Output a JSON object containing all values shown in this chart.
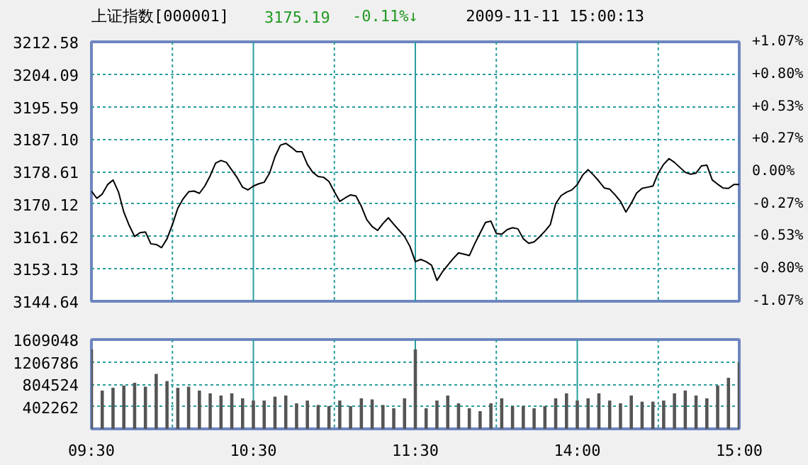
{
  "chart_data": [
    {
      "type": "line",
      "title": "上证指数[000001]",
      "annotations": [
        "3175.19",
        "-0.11%↓",
        "2009-11-11 15:00:13"
      ],
      "categories": [
        null,
        null,
        null,
        null,
        null,
        null,
        null,
        null,
        null,
        null,
        null,
        null,
        null,
        null,
        null,
        null,
        null,
        null,
        null,
        null,
        null,
        null,
        null,
        null,
        null,
        null,
        null,
        null,
        null,
        null,
        null,
        null,
        null,
        null,
        null,
        null,
        null,
        null,
        null,
        null,
        null,
        null,
        null,
        null,
        null,
        null,
        null,
        null,
        null,
        null,
        null,
        null,
        null,
        null,
        null,
        null,
        null,
        null,
        null,
        null,
        null,
        null,
        null,
        null,
        null,
        null,
        null,
        null,
        null,
        null,
        null,
        null,
        null,
        null,
        null,
        null,
        null,
        null,
        null,
        null,
        null,
        null,
        null,
        null,
        null,
        null,
        null,
        null,
        null,
        null,
        null,
        null,
        null,
        null,
        null,
        null,
        null,
        null,
        null,
        null,
        null,
        null,
        null,
        null,
        null,
        null,
        null,
        null,
        null,
        null,
        null,
        null,
        null,
        null,
        null,
        null,
        null,
        null,
        null,
        null,
        null
      ],
      "series": [
        {
          "color": "#000000",
          "values": [
            3173.5,
            3171.6,
            3172.7,
            3175.2,
            3176.4,
            3173.3,
            3168.0,
            3164.5,
            3161.6,
            3162.6,
            3162.8,
            3159.7,
            3159.5,
            3158.7,
            3161.0,
            3164.7,
            3169.0,
            3171.5,
            3173.3,
            3173.5,
            3172.9,
            3174.8,
            3177.5,
            3180.8,
            3181.5,
            3181.0,
            3179.0,
            3177.0,
            3174.5,
            3173.8,
            3174.8,
            3175.4,
            3175.8,
            3178.2,
            3182.5,
            3185.5,
            3186.0,
            3185.0,
            3183.8,
            3183.8,
            3180.5,
            3178.4,
            3177.3,
            3177.1,
            3176.0,
            3173.3,
            3170.8,
            3171.7,
            3172.5,
            3172.2,
            3169.5,
            3166.0,
            3164.2,
            3163.2,
            3165.0,
            3166.5,
            3164.8,
            3163.2,
            3161.6,
            3159.0,
            3155.0,
            3155.6,
            3155.0,
            3154.1,
            3150.1,
            3152.3,
            3154.1,
            3155.8,
            3157.3,
            3157.0,
            3156.6,
            3159.7,
            3162.5,
            3165.3,
            3165.6,
            3162.4,
            3162.2,
            3163.4,
            3163.9,
            3163.6,
            3161.0,
            3159.8,
            3160.2,
            3161.5,
            3163.0,
            3164.7,
            3170.2,
            3172.3,
            3173.2,
            3173.8,
            3175.2,
            3177.7,
            3179.1,
            3177.7,
            3176.1,
            3174.3,
            3174.0,
            3172.5,
            3170.8,
            3168.0,
            3170.3,
            3173.0,
            3174.2,
            3174.5,
            3174.8,
            3178.2,
            3180.5,
            3182.0,
            3181.0,
            3179.7,
            3178.4,
            3177.9,
            3178.2,
            3180.1,
            3180.3,
            3176.4,
            3175.3,
            3174.3,
            3174.2,
            3175.2,
            3175.2
          ]
        }
      ],
      "ylim": [
        3144.64,
        3212.58
      ],
      "yticks": [
        3144.64,
        3153.13,
        3161.62,
        3170.12,
        3178.61,
        {
          "value": 3187.1,
          "label": "3187.10"
        },
        3195.59,
        3204.09,
        3212.58
      ],
      "y2lim": [
        -1.07,
        1.07
      ],
      "y2ticks": [
        {
          "value": -1.07,
          "label": "-1.07%"
        },
        {
          "value": -0.8,
          "label": "-0.80%"
        },
        {
          "value": -0.53,
          "label": "-0.53%"
        },
        {
          "value": -0.27,
          "label": "-0.27%"
        },
        {
          "value": 0,
          "label": "0.00%"
        },
        {
          "value": 0.27,
          "label": "+0.27%"
        },
        {
          "value": 0.53,
          "label": "+0.53%"
        },
        {
          "value": 0.8,
          "label": "+0.80%"
        },
        {
          "value": 1.07,
          "label": "+1.07%"
        }
      ],
      "grid": true
    },
    {
      "type": "bar",
      "color": "#555555",
      "categories": [
        "09:30",
        null,
        null,
        null,
        null,
        null,
        null,
        null,
        null,
        null,
        null,
        null,
        null,
        null,
        null,
        "10:30",
        null,
        null,
        null,
        null,
        null,
        null,
        null,
        null,
        null,
        null,
        null,
        null,
        null,
        null,
        "11:30",
        null,
        null,
        null,
        null,
        null,
        null,
        null,
        null,
        null,
        null,
        null,
        null,
        null,
        null,
        "14:00",
        null,
        null,
        null,
        null,
        null,
        null,
        null,
        null,
        null,
        null,
        null,
        null,
        null,
        null,
        "15:00"
      ],
      "values": [
        1430000,
        690000,
        740000,
        780000,
        830000,
        760000,
        990000,
        860000,
        740000,
        760000,
        690000,
        640000,
        600000,
        640000,
        550000,
        510000,
        510000,
        580000,
        600000,
        460000,
        510000,
        430000,
        410000,
        510000,
        410000,
        550000,
        530000,
        430000,
        370000,
        550000,
        1430000,
        370000,
        510000,
        600000,
        460000,
        370000,
        320000,
        460000,
        550000,
        410000,
        410000,
        370000,
        410000,
        550000,
        640000,
        510000,
        550000,
        640000,
        510000,
        460000,
        600000,
        490000,
        490000,
        510000,
        640000,
        690000,
        600000,
        550000,
        780000,
        920000,
        1200000
      ],
      "ylim": [
        0,
        1609048
      ],
      "yticks": [
        402262,
        804524,
        1206786,
        1609048
      ],
      "grid": true
    }
  ]
}
